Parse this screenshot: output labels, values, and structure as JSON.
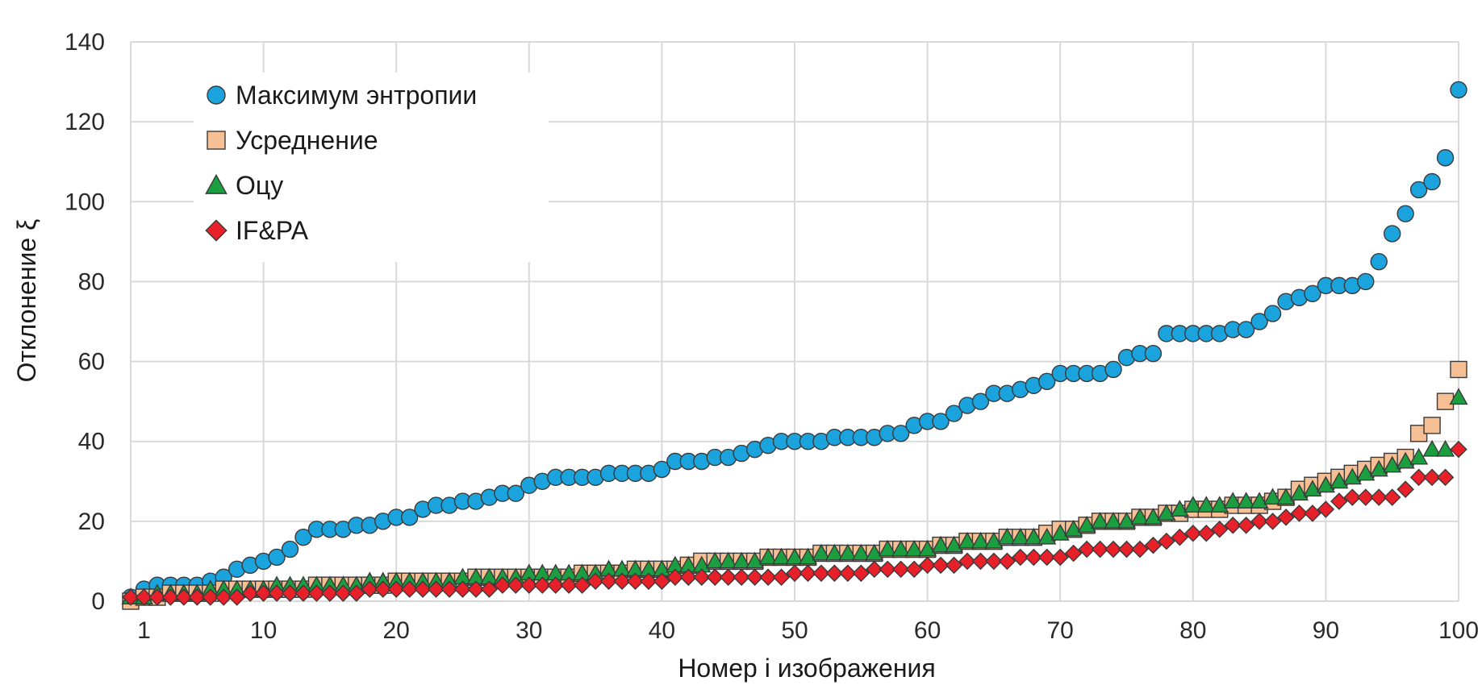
{
  "chart_data": {
    "type": "scatter",
    "xlabel": "Номер i изображения",
    "ylabel": "Отклонение ξ",
    "xlim": [
      0,
      100
    ],
    "ylim": [
      0,
      140
    ],
    "x_ticks": [
      1,
      10,
      20,
      30,
      40,
      50,
      60,
      70,
      80,
      90,
      100
    ],
    "y_ticks": [
      0,
      20,
      40,
      60,
      80,
      100,
      120,
      140
    ],
    "grid": true,
    "legend_position": "top-left",
    "series": [
      {
        "name": "Максимум энтропии",
        "marker": "circle",
        "color": "#1aa3dc",
        "values": [
          1,
          3,
          4,
          4,
          4,
          4,
          5,
          6,
          8,
          9,
          10,
          11,
          13,
          16,
          18,
          18,
          18,
          19,
          19,
          20,
          21,
          21,
          23,
          24,
          24,
          25,
          25,
          26,
          27,
          27,
          29,
          30,
          31,
          31,
          31,
          31,
          32,
          32,
          32,
          32,
          33,
          35,
          35,
          35,
          36,
          36,
          37,
          38,
          39,
          40,
          40,
          40,
          40,
          41,
          41,
          41,
          41,
          42,
          42,
          44,
          45,
          45,
          47,
          49,
          50,
          52,
          52,
          53,
          54,
          55,
          57,
          57,
          57,
          57,
          58,
          61,
          62,
          62,
          67,
          67,
          67,
          67,
          67,
          68,
          68,
          70,
          72,
          75,
          76,
          77,
          79,
          79,
          79,
          80,
          85,
          92,
          97,
          103,
          105,
          111,
          128
        ]
      },
      {
        "name": "Усреднение",
        "marker": "square",
        "color": "#f6bf94",
        "values": [
          0,
          1,
          1,
          2,
          2,
          2,
          2,
          3,
          3,
          3,
          3,
          3,
          3,
          3,
          4,
          4,
          4,
          4,
          4,
          4,
          5,
          5,
          5,
          5,
          5,
          5,
          6,
          6,
          6,
          6,
          6,
          6,
          6,
          6,
          7,
          7,
          7,
          7,
          8,
          8,
          8,
          8,
          9,
          10,
          10,
          10,
          10,
          10,
          11,
          11,
          11,
          11,
          12,
          12,
          12,
          12,
          12,
          13,
          13,
          13,
          13,
          14,
          14,
          15,
          15,
          15,
          16,
          16,
          16,
          17,
          18,
          18,
          19,
          20,
          20,
          20,
          21,
          21,
          22,
          22,
          23,
          23,
          23,
          24,
          24,
          24,
          25,
          26,
          28,
          29,
          30,
          31,
          32,
          33,
          34,
          35,
          36,
          42,
          44,
          50,
          58
        ]
      },
      {
        "name": "Оцу",
        "marker": "triangle",
        "color": "#1a9e40",
        "values": [
          1,
          1,
          2,
          2,
          2,
          2,
          3,
          3,
          3,
          3,
          3,
          4,
          4,
          4,
          4,
          4,
          4,
          4,
          5,
          5,
          5,
          5,
          5,
          5,
          5,
          6,
          6,
          6,
          6,
          6,
          7,
          7,
          7,
          7,
          7,
          7,
          8,
          8,
          8,
          8,
          8,
          9,
          9,
          9,
          10,
          10,
          10,
          10,
          11,
          11,
          11,
          11,
          12,
          12,
          12,
          12,
          12,
          13,
          13,
          13,
          13,
          14,
          14,
          15,
          15,
          15,
          16,
          16,
          16,
          16,
          17,
          18,
          19,
          20,
          20,
          20,
          21,
          21,
          22,
          23,
          24,
          24,
          24,
          25,
          25,
          25,
          26,
          26,
          27,
          28,
          29,
          30,
          31,
          32,
          33,
          34,
          35,
          36,
          38,
          38,
          51
        ]
      },
      {
        "name": "IF&PA",
        "marker": "diamond",
        "color": "#e8202a",
        "values": [
          1,
          1,
          1,
          1,
          1,
          1,
          1,
          1,
          1,
          2,
          2,
          2,
          2,
          2,
          2,
          2,
          2,
          2,
          3,
          3,
          3,
          3,
          3,
          3,
          3,
          3,
          3,
          3,
          4,
          4,
          4,
          4,
          4,
          4,
          4,
          5,
          5,
          5,
          5,
          5,
          5,
          6,
          6,
          6,
          6,
          6,
          6,
          6,
          6,
          6,
          7,
          7,
          7,
          7,
          7,
          7,
          8,
          8,
          8,
          8,
          9,
          9,
          9,
          10,
          10,
          10,
          10,
          11,
          11,
          11,
          11,
          12,
          13,
          13,
          13,
          13,
          13,
          14,
          15,
          16,
          17,
          17,
          18,
          19,
          19,
          20,
          20,
          21,
          22,
          22,
          23,
          25,
          26,
          26,
          26,
          26,
          28,
          31,
          31,
          31,
          38
        ]
      }
    ]
  }
}
